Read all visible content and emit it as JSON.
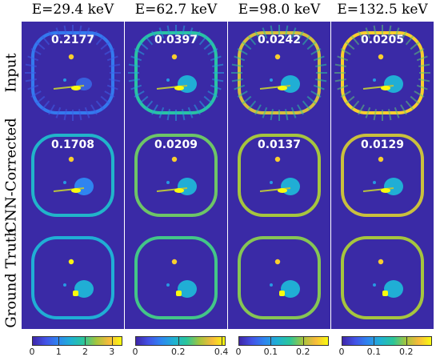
{
  "columns": [
    {
      "title": "E=29.4 keV"
    },
    {
      "title": "E=62.7 keV"
    },
    {
      "title": "E=98.0 keV"
    },
    {
      "title": "E=132.5 keV"
    }
  ],
  "rows": [
    {
      "label": "Input"
    },
    {
      "label": "CNN-Corrected"
    },
    {
      "label": "Ground Truth"
    }
  ],
  "errors": {
    "input": [
      "0.2177",
      "0.0397",
      "0.0242",
      "0.0205"
    ],
    "corrected": [
      "0.1708",
      "0.0209",
      "0.0137",
      "0.0129"
    ]
  },
  "colorbars": [
    {
      "ticks": [
        "0",
        "1",
        "2",
        "3"
      ],
      "tick_values": [
        0,
        1,
        2,
        3
      ],
      "max": 3.4
    },
    {
      "ticks": [
        "0",
        "0.2",
        "0.4"
      ],
      "tick_values": [
        0,
        0.2,
        0.4
      ],
      "max": 0.42
    },
    {
      "ticks": [
        "0",
        "0.1",
        "0.2"
      ],
      "tick_values": [
        0,
        0.1,
        0.2
      ],
      "max": 0.28
    },
    {
      "ticks": [
        "0",
        "0.1",
        "0.2"
      ],
      "tick_values": [
        0,
        0.1,
        0.2
      ],
      "max": 0.28
    }
  ],
  "colormap": {
    "background": "#3a2aa6",
    "ring_levels": {
      "input": [
        0.25,
        0.55,
        0.8,
        0.9
      ],
      "corrected": [
        0.45,
        0.65,
        0.72,
        0.78
      ],
      "truth": [
        0.42,
        0.6,
        0.68,
        0.72
      ]
    },
    "stops": [
      "#3e26a8",
      "#4352e6",
      "#2e86f0",
      "#1fb1d3",
      "#2bc69a",
      "#a3c53e",
      "#f7ba3c",
      "#f9fb0e"
    ]
  }
}
